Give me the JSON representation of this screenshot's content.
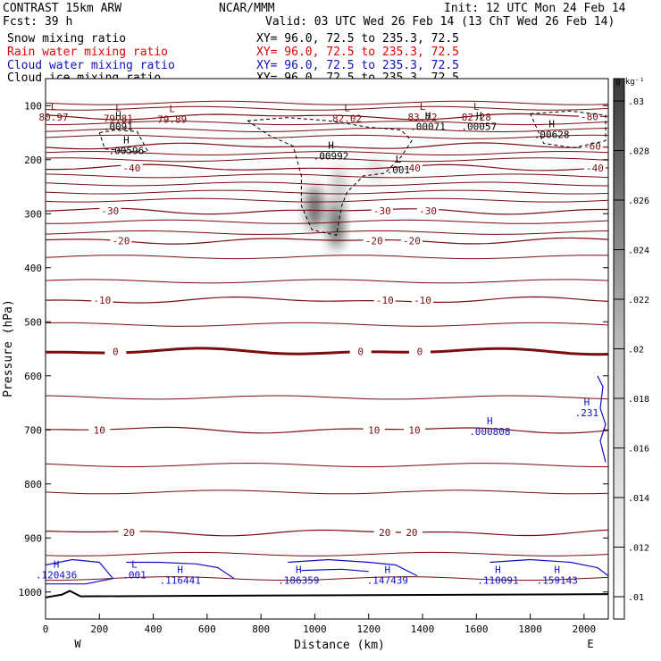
{
  "header": {
    "left_title": "CONTRAST 15km ARW",
    "fcst": "Fcst:   39 h",
    "center_title": "NCAR/MMM",
    "init": "Init: 12 UTC Mon 24 Feb 14",
    "valid": "Valid: 03 UTC Wed 26 Feb 14 (13 ChT Wed 26 Feb 14)",
    "fields": [
      {
        "name": "Snow mixing ratio",
        "xy": "XY=  96.0, 72.5 to 235.3, 72.5",
        "color": "#000000"
      },
      {
        "name": "Rain water mixing ratio",
        "xy": "XY=  96.0, 72.5 to 235.3, 72.5",
        "color": "#e00000"
      },
      {
        "name": "Cloud water mixing ratio",
        "xy": "XY=  96.0, 72.5 to 235.3, 72.5",
        "color": "#1010c0"
      },
      {
        "name": "Cloud ice mixing ratio",
        "xy": "XY=  96.0, 72.5 to 235.3, 72.5",
        "color": "#000000"
      }
    ]
  },
  "colors": {
    "temperature": "#7a0e0e",
    "cloud_water": "#1010c0",
    "ice": "#000000",
    "freezing_line": "#7a0e0e"
  },
  "chart_data": {
    "type": "cross-section",
    "xlabel": "Distance (km)",
    "ylabel": "Pressure (hPa)",
    "xlim": [
      0,
      2090
    ],
    "ylim": [
      1050,
      50
    ],
    "x_ticks": [
      0,
      200,
      400,
      600,
      800,
      1000,
      1200,
      1400,
      1600,
      1800,
      2000
    ],
    "y_ticks": [
      100,
      200,
      300,
      400,
      500,
      600,
      700,
      800,
      900,
      1000
    ],
    "endpoint_labels": [
      "W",
      "E"
    ],
    "colorbar": {
      "unit": "g kg⁻¹",
      "ticks": [
        ".01",
        ".012",
        ".014",
        ".016",
        ".018",
        ".02",
        ".022",
        ".024",
        ".026",
        ".028",
        ".03"
      ]
    },
    "temperature_contours": [
      {
        "level": "-80",
        "p": 120,
        "labels": [
          {
            "x": 2020,
            "text": "-80"
          }
        ]
      },
      {
        "level": "-60",
        "p": 175,
        "labels": [
          {
            "x": 2030,
            "text": "-60"
          }
        ]
      },
      {
        "level": "-40",
        "p": 215,
        "labels": [
          {
            "x": 320,
            "text": "-40"
          },
          {
            "x": 1360,
            "text": "-40"
          },
          {
            "x": 2040,
            "text": "-40"
          }
        ]
      },
      {
        "level": "-30",
        "p": 295,
        "labels": [
          {
            "x": 240,
            "text": "-30"
          },
          {
            "x": 1250,
            "text": "-30"
          },
          {
            "x": 1420,
            "text": "-30"
          }
        ]
      },
      {
        "level": "-20",
        "p": 350,
        "labels": [
          {
            "x": 280,
            "text": "-20"
          },
          {
            "x": 1220,
            "text": "-20"
          },
          {
            "x": 1360,
            "text": "-20"
          }
        ]
      },
      {
        "level": "-10",
        "p": 460,
        "labels": [
          {
            "x": 210,
            "text": "-10"
          },
          {
            "x": 1260,
            "text": "-10"
          },
          {
            "x": 1400,
            "text": "-10"
          }
        ]
      },
      {
        "level": "0",
        "p": 555,
        "labels": [
          {
            "x": 260,
            "text": "0"
          },
          {
            "x": 1170,
            "text": "0"
          },
          {
            "x": 1390,
            "text": "0"
          }
        ]
      },
      {
        "level": "10",
        "p": 700,
        "labels": [
          {
            "x": 200,
            "text": "10"
          },
          {
            "x": 1220,
            "text": "10"
          },
          {
            "x": 1370,
            "text": "10"
          }
        ]
      },
      {
        "level": "20",
        "p": 890,
        "labels": [
          {
            "x": 310,
            "text": "20"
          },
          {
            "x": 1260,
            "text": "20"
          },
          {
            "x": 1360,
            "text": "20"
          }
        ]
      }
    ],
    "extrema": [
      {
        "kind": "L",
        "x": 30,
        "p": 108,
        "value": "80.97",
        "color": "temperature"
      },
      {
        "kind": "L",
        "x": 270,
        "p": 110,
        "value": "79.81",
        "color": "temperature"
      },
      {
        "kind": "L",
        "x": 470,
        "p": 112,
        "value": "79.89",
        "color": "temperature"
      },
      {
        "kind": "L",
        "x": 1120,
        "p": 110,
        "value": "82.02",
        "color": "temperature"
      },
      {
        "kind": "L",
        "x": 1400,
        "p": 108,
        "value": "83.72",
        "color": "temperature"
      },
      {
        "kind": "L",
        "x": 1600,
        "p": 108,
        "value": "82.28",
        "color": "temperature"
      },
      {
        "kind": "H",
        "x": 270,
        "p": 125,
        "value": ".0091",
        "color": "ice"
      },
      {
        "kind": "H",
        "x": 300,
        "p": 170,
        "value": ".00596",
        "color": "ice"
      },
      {
        "kind": "H",
        "x": 1060,
        "p": 180,
        "value": ".00992",
        "color": "ice"
      },
      {
        "kind": "H",
        "x": 1420,
        "p": 125,
        "value": ".00071",
        "color": "ice"
      },
      {
        "kind": "H",
        "x": 1610,
        "p": 125,
        "value": ".00057",
        "color": "ice"
      },
      {
        "kind": "H",
        "x": 1880,
        "p": 140,
        "value": ".00628",
        "color": "ice"
      },
      {
        "kind": "L",
        "x": 1310,
        "p": 205,
        "value": ".001",
        "color": "ice"
      },
      {
        "kind": "H",
        "x": 1650,
        "p": 690,
        "value": ".000808",
        "color": "cloud_water"
      },
      {
        "kind": "H",
        "x": 2010,
        "p": 655,
        "value": ".231",
        "color": "cloud_water"
      },
      {
        "kind": "H",
        "x": 40,
        "p": 955,
        "value": ".120436",
        "color": "cloud_water"
      },
      {
        "kind": "L",
        "x": 330,
        "p": 955,
        "value": ".001",
        "color": "cloud_water"
      },
      {
        "kind": "H",
        "x": 500,
        "p": 965,
        "value": ".116441",
        "color": "cloud_water"
      },
      {
        "kind": "H",
        "x": 940,
        "p": 965,
        "value": ".186359",
        "color": "cloud_water"
      },
      {
        "kind": "H",
        "x": 1270,
        "p": 965,
        "value": ".147439",
        "color": "cloud_water"
      },
      {
        "kind": "H",
        "x": 1680,
        "p": 965,
        "value": ".110091",
        "color": "cloud_water"
      },
      {
        "kind": "H",
        "x": 1900,
        "p": 965,
        "value": ".159143",
        "color": "cloud_water"
      }
    ],
    "ice_regions": [
      [
        [
          200,
          150
        ],
        [
          260,
          145
        ],
        [
          340,
          148
        ],
        [
          380,
          185
        ],
        [
          330,
          185
        ],
        [
          220,
          180
        ],
        [
          200,
          150
        ]
      ],
      [
        [
          750,
          128
        ],
        [
          900,
          122
        ],
        [
          1050,
          128
        ],
        [
          1200,
          140
        ],
        [
          1320,
          145
        ],
        [
          1360,
          165
        ],
        [
          1320,
          195
        ],
        [
          1260,
          225
        ],
        [
          1180,
          230
        ],
        [
          1120,
          260
        ],
        [
          1100,
          285
        ],
        [
          1080,
          340
        ],
        [
          990,
          330
        ],
        [
          950,
          285
        ],
        [
          950,
          230
        ],
        [
          920,
          175
        ],
        [
          830,
          155
        ],
        [
          750,
          128
        ]
      ],
      [
        [
          1800,
          115
        ],
        [
          1950,
          110
        ],
        [
          2080,
          118
        ],
        [
          2080,
          165
        ],
        [
          1960,
          178
        ],
        [
          1850,
          170
        ],
        [
          1800,
          115
        ]
      ]
    ],
    "snow_blobs": [
      {
        "x": 1000,
        "p": 290,
        "rx": 30,
        "rp": 40,
        "value": 0.026
      },
      {
        "x": 1080,
        "p": 320,
        "rx": 24,
        "rp": 45,
        "value": 0.028
      },
      {
        "x": 1090,
        "p": 250,
        "rx": 20,
        "rp": 40,
        "value": 0.016
      },
      {
        "x": 1225,
        "p": 220,
        "rx": 22,
        "rp": 20,
        "value": 0.014
      }
    ]
  }
}
